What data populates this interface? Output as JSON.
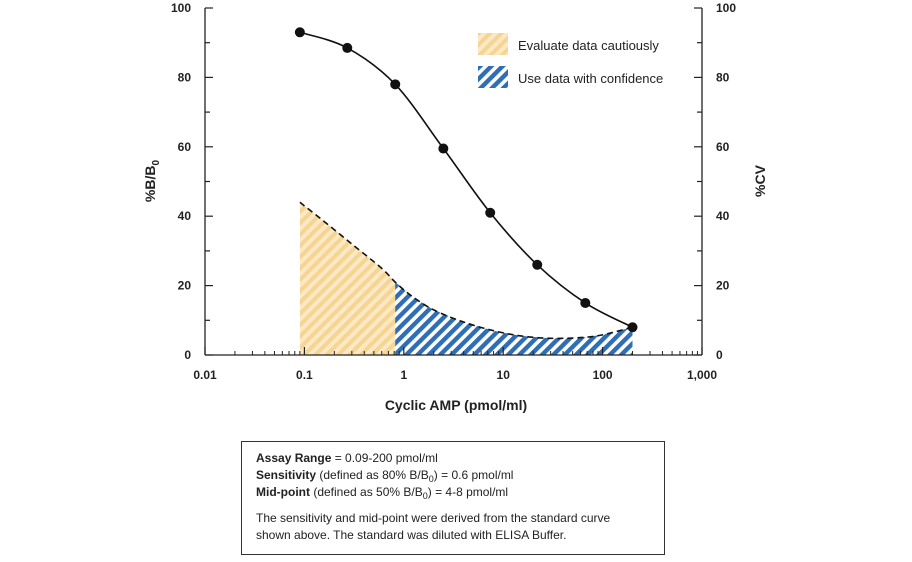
{
  "chart_data": {
    "type": "line",
    "title": "",
    "xlabel": "Cyclic AMP (pmol/ml)",
    "ylabel_base": "%B/B",
    "ylabel_sub": "0",
    "y2label": "%CV",
    "xscale": "log",
    "xlim": [
      0.01,
      1000
    ],
    "ylim": [
      0,
      100
    ],
    "y2lim": [
      0,
      100
    ],
    "grid": false,
    "x_ticks": [
      0.01,
      0.1,
      1,
      10,
      100,
      1000
    ],
    "x_tick_labels": [
      "0.01",
      "0.1",
      "1",
      "10",
      "100",
      "1,000"
    ],
    "y_ticks": [
      0,
      20,
      40,
      60,
      80,
      100
    ],
    "y_tick_labels": [
      "0",
      "20",
      "40",
      "60",
      "80",
      "100"
    ],
    "y2_tick_labels": [
      "0",
      "20",
      "40",
      "60",
      "80",
      "100"
    ],
    "series": [
      {
        "name": "%B/B0 standard curve",
        "axis": "left",
        "style": "solid line with markers",
        "x": [
          0.09,
          0.27,
          0.82,
          2.5,
          7.4,
          22,
          67,
          200
        ],
        "y": [
          93,
          88.5,
          78,
          59.5,
          41,
          26,
          15,
          8
        ]
      },
      {
        "name": "%CV",
        "axis": "right",
        "style": "dashed line",
        "x": [
          0.09,
          0.15,
          0.3,
          0.6,
          0.82,
          1.2,
          2,
          4,
          8,
          15,
          30,
          60,
          100,
          200
        ],
        "y": [
          44,
          39,
          32,
          25,
          21,
          17,
          13,
          9.5,
          7,
          5.5,
          4.8,
          5,
          5.8,
          8
        ]
      }
    ],
    "regions": [
      {
        "name": "Evaluate data cautiously",
        "x_from": 0.09,
        "x_to": 0.82,
        "color": "#f6d493"
      },
      {
        "name": "Use data with confidence",
        "x_from": 0.82,
        "x_to": 200,
        "color": "#2f6db5"
      }
    ],
    "legend": {
      "placement": "top-right",
      "entries": [
        "Evaluate data cautiously",
        "Use data with confidence"
      ]
    }
  },
  "info_box": {
    "assay_range_label": "Assay Range",
    "assay_range_value": " = 0.09-200 pmol/ml",
    "sensitivity_label": "Sensitivity",
    "sensitivity_pre": " (defined as 80% B/B",
    "sensitivity_sub": "0",
    "sensitivity_post": ") = 0.6 pmol/ml",
    "midpoint_label": "Mid-point",
    "midpoint_pre": " (defined as 50% B/B",
    "midpoint_sub": "0",
    "midpoint_post": ") = 4-8 pmol/ml",
    "note_line1": "The sensitivity and mid-point were derived from the standard curve",
    "note_line2": "shown above. The standard was diluted with ELISA Buffer."
  }
}
